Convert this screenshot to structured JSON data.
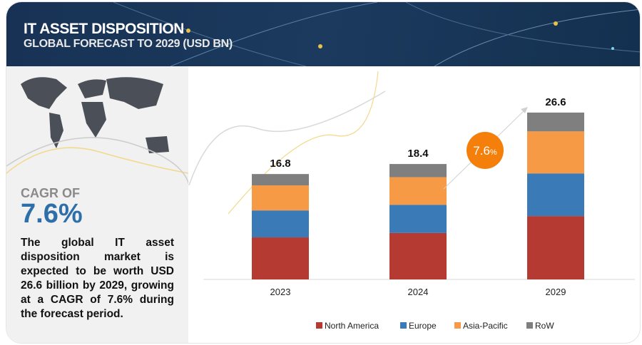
{
  "header": {
    "title": "IT ASSET DISPOSITION",
    "subtitle": "GLOBAL FORECAST TO 2029 (USD BN)"
  },
  "sidebar": {
    "cagr_label": "CAGR OF",
    "cagr_value": "7.6%",
    "description": "The global IT asset disposition market is expected to be worth USD 26.6 billion by 2029, growing at a CAGR of 7.6% during the forecast period."
  },
  "chart_data": {
    "type": "bar",
    "stacked": true,
    "categories": [
      "2023",
      "2024",
      "2029"
    ],
    "totals": [
      "16.8",
      "18.4",
      "26.6"
    ],
    "series": [
      {
        "name": "North America",
        "color": "#b53a32",
        "values": [
          6.7,
          7.4,
          10.1
        ]
      },
      {
        "name": "Europe",
        "color": "#3a7ab6",
        "values": [
          4.3,
          4.5,
          6.8
        ]
      },
      {
        "name": "Asia-Pacific",
        "color": "#f79a45",
        "values": [
          4.0,
          4.4,
          6.7
        ]
      },
      {
        "name": "RoW",
        "color": "#7f7f7f",
        "values": [
          1.8,
          2.1,
          3.0
        ]
      }
    ],
    "annotation": {
      "value": "7.6",
      "unit": "%",
      "color": "#f57f0b"
    },
    "legend_position": "bottom",
    "grid": false,
    "ylim": [
      0,
      28
    ]
  }
}
